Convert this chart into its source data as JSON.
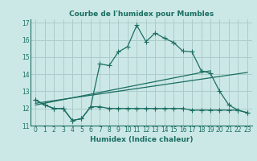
{
  "title": "Courbe de l'humidex pour Mumbles",
  "xlabel": "Humidex (Indice chaleur)",
  "background_color": "#cce8e6",
  "grid_color": "#aaccca",
  "line_color": "#1a6e62",
  "xlim": [
    -0.5,
    23.5
  ],
  "ylim": [
    11,
    17.2
  ],
  "yticks": [
    11,
    12,
    13,
    14,
    15,
    16,
    17
  ],
  "xticks": [
    0,
    1,
    2,
    3,
    4,
    5,
    6,
    7,
    8,
    9,
    10,
    11,
    12,
    13,
    14,
    15,
    16,
    17,
    18,
    19,
    20,
    21,
    22,
    23
  ],
  "line1_x": [
    0,
    1,
    2,
    3,
    4,
    5,
    6,
    7,
    8,
    9,
    10,
    11,
    12,
    13,
    14,
    15,
    16,
    17,
    18,
    19,
    20,
    21,
    22,
    23
  ],
  "line1_y": [
    12.5,
    12.2,
    12.0,
    12.0,
    11.3,
    11.4,
    12.1,
    14.6,
    14.5,
    15.3,
    15.6,
    16.85,
    15.9,
    16.4,
    16.1,
    15.85,
    15.35,
    15.3,
    14.2,
    14.05,
    13.0,
    12.2,
    11.9,
    11.75
  ],
  "line2_x": [
    0,
    1,
    2,
    3,
    4,
    5,
    6,
    7,
    8,
    9,
    10,
    11,
    12,
    13,
    14,
    15,
    16,
    17,
    18,
    19,
    20,
    21,
    22,
    23
  ],
  "line2_y": [
    12.5,
    12.2,
    12.0,
    12.0,
    11.3,
    11.4,
    12.1,
    12.1,
    12.0,
    12.0,
    12.0,
    12.0,
    12.0,
    12.0,
    12.0,
    12.0,
    12.0,
    11.9,
    11.9,
    11.9,
    11.9,
    11.9,
    11.9,
    11.75
  ],
  "line3_x": [
    0,
    19
  ],
  "line3_y": [
    12.2,
    14.2
  ],
  "line4_x": [
    0,
    23
  ],
  "line4_y": [
    12.3,
    14.1
  ]
}
